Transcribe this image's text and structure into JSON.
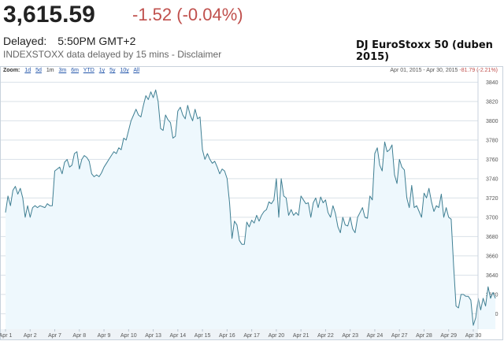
{
  "quote": {
    "price": "3,615.59",
    "change": "-1.52 (-0.04%)",
    "delayed_label": "Delayed:",
    "time": "5:50PM GMT+2",
    "source_note": "INDEXSTOXX data delayed by 15 mins - ",
    "disclaimer_link": "Disclaimer"
  },
  "annotation": "DJ EuroStoxx 50 (duben 2015)",
  "zoom": {
    "label": "Zoom:",
    "options": [
      "1d",
      "5d",
      "1m",
      "3m",
      "6m",
      "YTD",
      "1y",
      "5y",
      "10y",
      "All"
    ],
    "active": "1m"
  },
  "range_text": {
    "dates": "Apr 01, 2015 - Apr 30, 2015",
    "change": "-81.79 (-2.21%)"
  },
  "colors": {
    "line": "#3f7f93",
    "fill": "#eef8fd",
    "grid": "#d9e1e8",
    "negative": "#c0504d"
  },
  "chart_data": {
    "type": "area",
    "title": "",
    "xlabel": "",
    "ylabel": "",
    "categories": [
      "Apr 1",
      "Apr 2",
      "Apr 7",
      "Apr 8",
      "Apr 9",
      "Apr 10",
      "Apr 13",
      "Apr 14",
      "Apr 15",
      "Apr 16",
      "Apr 17",
      "Apr 20",
      "Apr 21",
      "Apr 22",
      "Apr 23",
      "Apr 24",
      "Apr 27",
      "Apr 28",
      "Apr 29",
      "Apr 30"
    ],
    "y_ticks": [
      3600,
      3620,
      3640,
      3660,
      3680,
      3700,
      3720,
      3740,
      3760,
      3780,
      3800,
      3820,
      3840
    ],
    "ylim": [
      3584,
      3846
    ],
    "grid": true,
    "series": [
      {
        "x": [
          0,
          0.1,
          0.2,
          0.3,
          0.4,
          0.5,
          0.6,
          0.7,
          0.8,
          0.9,
          1.0,
          1.1,
          1.2,
          1.3,
          1.4,
          1.5,
          1.6,
          1.7,
          1.8,
          1.9,
          2.0,
          2.1,
          2.2,
          2.3,
          2.4,
          2.5,
          2.6,
          2.7,
          2.8,
          2.9,
          3.0,
          3.1,
          3.2,
          3.3,
          3.4,
          3.5,
          3.6,
          3.7,
          3.8,
          3.9,
          4.0,
          4.1,
          4.2,
          4.3,
          4.4,
          4.5,
          4.6,
          4.7,
          4.8,
          4.9,
          5.0,
          5.1,
          5.2,
          5.3,
          5.4,
          5.5,
          5.6,
          5.7,
          5.8,
          5.9,
          6.0,
          6.1,
          6.2,
          6.3,
          6.4,
          6.5,
          6.6,
          6.7,
          6.8,
          6.9,
          7.0,
          7.1,
          7.2,
          7.3,
          7.4,
          7.5,
          7.6,
          7.7,
          7.8,
          7.9,
          8.0,
          8.1,
          8.2,
          8.3,
          8.4,
          8.5,
          8.6,
          8.7,
          8.8,
          8.9,
          9.0,
          9.1,
          9.2,
          9.3,
          9.4,
          9.5,
          9.6,
          9.7,
          9.8,
          9.9,
          10.0,
          10.1,
          10.2,
          10.3,
          10.4,
          10.5,
          10.6,
          10.7,
          10.8,
          10.9,
          11.0,
          11.1,
          11.2,
          11.3,
          11.4,
          11.5,
          11.6,
          11.7,
          11.8,
          11.9,
          12.0,
          12.1,
          12.2,
          12.3,
          12.4,
          12.5,
          12.6,
          12.7,
          12.8,
          12.9,
          13.0,
          13.1,
          13.2,
          13.3,
          13.4,
          13.5,
          13.6,
          13.7,
          13.8,
          13.9,
          14.0,
          14.1,
          14.2,
          14.3,
          14.4,
          14.5,
          14.6,
          14.7,
          14.8,
          14.9,
          15.0,
          15.1,
          15.2,
          15.3,
          15.4,
          15.5,
          15.6,
          15.7,
          15.8,
          15.9,
          16.0,
          16.1,
          16.2,
          16.3,
          16.4,
          16.5,
          16.6,
          16.7,
          16.8,
          16.9,
          17.0,
          17.1,
          17.2,
          17.3,
          17.4,
          17.5,
          17.6,
          17.7,
          17.8,
          17.9,
          18.0,
          18.1,
          18.2,
          18.3,
          18.4,
          18.5,
          18.6,
          18.7,
          18.8,
          18.9,
          19.0,
          19.1,
          19.2,
          19.3,
          19.4,
          19.5,
          19.6,
          19.7,
          19.8,
          19.9
        ],
        "values": [
          3705,
          3722,
          3712,
          3728,
          3732,
          3724,
          3730,
          3720,
          3700,
          3712,
          3700,
          3710,
          3712,
          3710,
          3712,
          3711,
          3710,
          3714,
          3712,
          3712,
          3748,
          3750,
          3752,
          3745,
          3757,
          3760,
          3752,
          3754,
          3766,
          3768,
          3750,
          3760,
          3764,
          3762,
          3758,
          3745,
          3742,
          3744,
          3742,
          3746,
          3752,
          3756,
          3760,
          3764,
          3768,
          3766,
          3772,
          3770,
          3782,
          3780,
          3790,
          3800,
          3806,
          3812,
          3806,
          3804,
          3816,
          3826,
          3822,
          3830,
          3824,
          3832,
          3820,
          3792,
          3790,
          3806,
          3801,
          3798,
          3782,
          3784,
          3810,
          3814,
          3806,
          3802,
          3816,
          3806,
          3800,
          3812,
          3802,
          3804,
          3770,
          3760,
          3766,
          3760,
          3756,
          3758,
          3752,
          3745,
          3750,
          3748,
          3740,
          3715,
          3678,
          3696,
          3692,
          3676,
          3672,
          3672,
          3695,
          3690,
          3697,
          3694,
          3702,
          3696,
          3702,
          3706,
          3708,
          3716,
          3714,
          3718,
          3740,
          3700,
          3740,
          3722,
          3720,
          3702,
          3708,
          3702,
          3705,
          3702,
          3722,
          3718,
          3714,
          3715,
          3700,
          3715,
          3720,
          3710,
          3721,
          3715,
          3718,
          3705,
          3700,
          3712,
          3704,
          3690,
          3684,
          3700,
          3692,
          3691,
          3700,
          3688,
          3684,
          3700,
          3705,
          3710,
          3700,
          3699,
          3722,
          3718,
          3766,
          3772,
          3754,
          3748,
          3778,
          3768,
          3770,
          3775,
          3744,
          3735,
          3760,
          3752,
          3749,
          3720,
          3710,
          3733,
          3710,
          3712,
          3706,
          3700,
          3725,
          3720,
          3730,
          3716,
          3706,
          3712,
          3710,
          3724,
          3700,
          3710,
          3700,
          3698,
          3650,
          3608,
          3606,
          3620,
          3620,
          3618,
          3618,
          3614,
          3588,
          3596,
          3616,
          3604,
          3616,
          3608,
          3628,
          3616,
          3622,
          3616
        ]
      }
    ]
  }
}
